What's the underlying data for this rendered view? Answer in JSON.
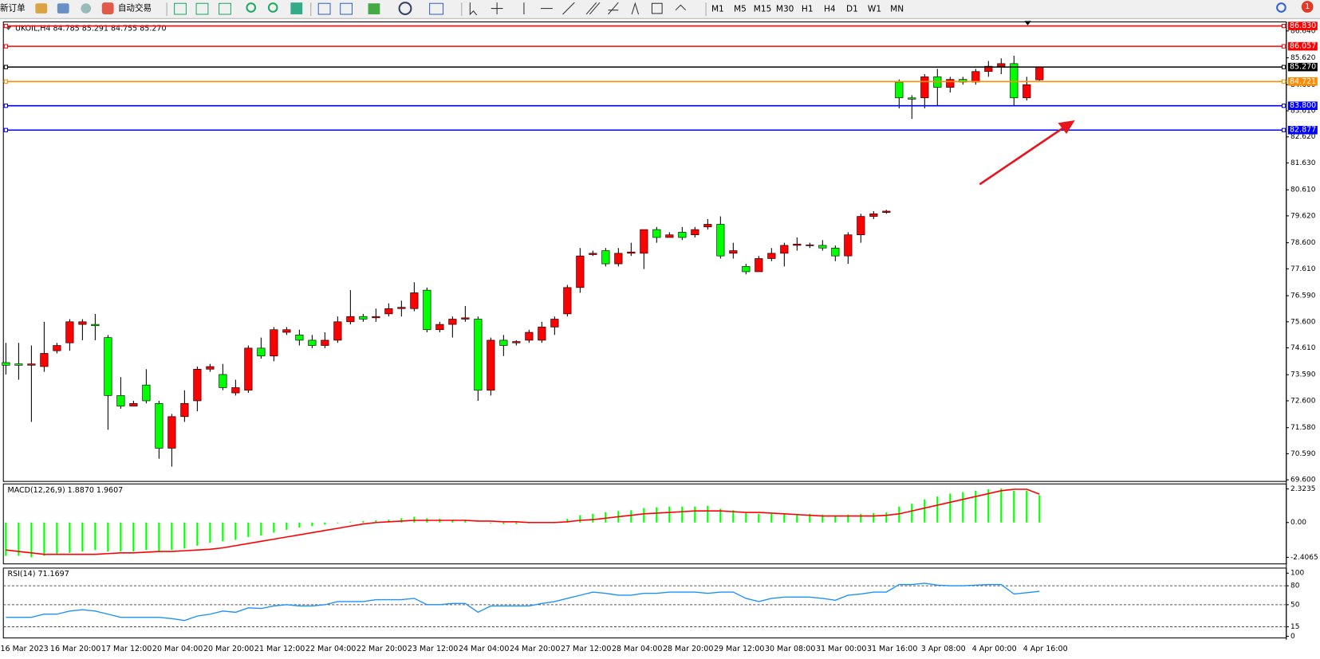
{
  "toolbar": {
    "new_order": "新订单",
    "auto_trading": "自动交易",
    "timeframes": [
      "M1",
      "M5",
      "M15",
      "M30",
      "H1",
      "H4",
      "D1",
      "W1",
      "MN"
    ],
    "notification_count": 1
  },
  "time_axis": [
    "16 Mar 2023",
    "16 Mar 20:00",
    "17 Mar 12:00",
    "20 Mar 04:00",
    "20 Mar 20:00",
    "21 Mar 12:00",
    "22 Mar 04:00",
    "22 Mar 20:00",
    "23 Mar 12:00",
    "24 Mar 04:00",
    "24 Mar 20:00",
    "27 Mar 12:00",
    "28 Mar 04:00",
    "28 Mar 20:00",
    "29 Mar 12:00",
    "30 Mar 08:00",
    "31 Mar 00:00",
    "31 Mar 16:00",
    "3 Apr 08:00",
    "4 Apr 00:00",
    "4 Apr 16:00"
  ],
  "chart_data": [
    {
      "type": "candlestick",
      "title": "UKOIL,H4  84.785 85.291 84.755 85.270",
      "up_color": "#ff0000",
      "down_color": "#00ff00",
      "open": [
        74.05,
        74.0,
        73.95,
        73.9,
        74.5,
        74.8,
        75.5,
        75.5,
        75.0,
        72.8,
        72.4,
        73.2,
        72.5,
        70.8,
        72.0,
        72.6,
        73.8,
        73.6,
        72.9,
        73.0,
        74.6,
        74.3,
        75.2,
        75.1,
        74.9,
        74.7,
        74.9,
        75.6,
        75.8,
        75.75,
        75.9,
        76.1,
        76.1,
        76.8,
        75.3,
        75.5,
        75.7,
        75.7,
        73.0,
        74.9,
        74.8,
        74.9,
        74.9,
        75.4,
        75.9,
        76.9,
        78.15,
        78.3,
        77.8,
        78.2,
        78.2,
        79.1,
        78.8,
        79.0,
        78.9,
        79.2,
        79.3,
        78.2,
        77.7,
        77.5,
        78.0,
        78.2,
        78.5,
        78.5,
        78.5,
        78.4,
        78.1,
        78.9,
        79.6,
        79.75,
        84.7,
        84.1,
        84.1,
        84.9,
        84.5,
        84.8,
        84.7,
        85.1,
        85.3,
        85.4,
        84.1,
        84.785
      ],
      "high": [
        74.8,
        74.8,
        74.7,
        75.6,
        74.8,
        75.7,
        75.7,
        75.9,
        75.1,
        73.5,
        72.6,
        73.8,
        72.6,
        72.1,
        73.0,
        73.9,
        74.0,
        74.0,
        73.4,
        74.7,
        75.0,
        75.4,
        75.4,
        75.3,
        75.1,
        75.2,
        75.8,
        76.8,
        75.9,
        76.1,
        76.3,
        76.4,
        77.1,
        76.9,
        75.6,
        75.8,
        76.2,
        75.8,
        75.0,
        75.1,
        74.9,
        75.3,
        75.6,
        75.8,
        77.0,
        78.4,
        78.3,
        78.4,
        78.4,
        78.6,
        79.1,
        79.2,
        79.0,
        79.2,
        79.2,
        79.5,
        79.6,
        78.6,
        77.8,
        78.1,
        78.4,
        78.6,
        78.8,
        78.6,
        78.7,
        78.5,
        79.0,
        79.7,
        79.8,
        79.85,
        84.8,
        84.2,
        85.0,
        85.2,
        84.9,
        84.9,
        85.2,
        85.5,
        85.6,
        85.7,
        84.9,
        85.291
      ],
      "low": [
        73.6,
        73.4,
        71.8,
        73.7,
        74.4,
        74.5,
        74.9,
        74.9,
        71.5,
        72.3,
        72.4,
        72.5,
        70.4,
        70.1,
        71.8,
        72.2,
        73.7,
        73.0,
        72.8,
        72.9,
        74.2,
        74.1,
        75.1,
        74.7,
        74.6,
        74.6,
        74.8,
        75.5,
        75.6,
        75.6,
        75.8,
        75.8,
        76.0,
        75.2,
        75.2,
        75.0,
        75.6,
        72.6,
        72.8,
        74.3,
        74.7,
        74.8,
        74.8,
        75.1,
        75.8,
        76.7,
        78.1,
        77.7,
        77.7,
        78.1,
        77.6,
        78.6,
        78.8,
        78.7,
        78.8,
        79.1,
        78.0,
        78.0,
        77.4,
        77.5,
        77.9,
        77.7,
        78.3,
        78.4,
        78.3,
        77.9,
        77.8,
        78.6,
        79.5,
        79.7,
        83.7,
        83.3,
        83.7,
        83.8,
        84.3,
        84.6,
        84.6,
        84.9,
        85.0,
        83.8,
        84.0,
        84.755
      ],
      "close": [
        73.95,
        73.95,
        74.0,
        74.4,
        74.7,
        75.6,
        75.6,
        75.45,
        72.8,
        72.4,
        72.5,
        72.6,
        70.8,
        72.0,
        72.5,
        73.8,
        73.9,
        73.1,
        73.1,
        74.6,
        74.3,
        75.3,
        75.3,
        74.9,
        74.7,
        74.9,
        75.6,
        75.8,
        75.7,
        75.8,
        76.1,
        76.15,
        76.7,
        75.3,
        75.5,
        75.7,
        75.75,
        73.0,
        74.9,
        74.7,
        74.85,
        75.2,
        75.4,
        75.7,
        76.9,
        78.1,
        78.2,
        77.8,
        78.2,
        78.25,
        79.1,
        78.8,
        78.9,
        78.8,
        79.1,
        79.3,
        78.1,
        78.3,
        77.5,
        78.0,
        78.2,
        78.5,
        78.55,
        78.52,
        78.4,
        78.1,
        78.9,
        79.6,
        79.7,
        79.8,
        84.1,
        84.05,
        84.9,
        84.5,
        84.8,
        84.7,
        85.1,
        85.3,
        85.4,
        84.1,
        84.6,
        85.27
      ],
      "levels": [
        {
          "value": 86.83,
          "label": "86.830",
          "color": "#ff0000"
        },
        {
          "value": 86.057,
          "label": "86.057",
          "color": "#ff0000"
        },
        {
          "value": 85.27,
          "label": "85.270",
          "color": "#000000"
        },
        {
          "value": 84.721,
          "label": "84.721",
          "color": "#ff8c00"
        },
        {
          "value": 83.8,
          "label": "83.800",
          "color": "#0000ff"
        },
        {
          "value": 82.877,
          "label": "82.877",
          "color": "#0000ff"
        }
      ],
      "ylim": [
        69.54,
        86.92
      ],
      "yticks": [
        {
          "value": 86.64,
          "label": "86.640"
        },
        {
          "value": 85.62,
          "label": "85.620"
        },
        {
          "value": 84.6,
          "label": "84.600"
        },
        {
          "value": 83.61,
          "label": "83.610"
        },
        {
          "value": 82.62,
          "label": "82.620"
        },
        {
          "value": 81.63,
          "label": "81.630"
        },
        {
          "value": 80.61,
          "label": "80.610"
        },
        {
          "value": 79.62,
          "label": "79.620"
        },
        {
          "value": 78.6,
          "label": "78.600"
        },
        {
          "value": 77.61,
          "label": "77.610"
        },
        {
          "value": 76.59,
          "label": "76.590"
        },
        {
          "value": 75.6,
          "label": "75.600"
        },
        {
          "value": 74.61,
          "label": "74.610"
        },
        {
          "value": 73.59,
          "label": "73.590"
        },
        {
          "value": 72.6,
          "label": "72.600"
        },
        {
          "value": 71.58,
          "label": "71.580"
        },
        {
          "value": 70.59,
          "label": "70.590"
        },
        {
          "value": 69.6,
          "label": "69.600"
        }
      ]
    },
    {
      "type": "macd",
      "title": "MACD(12,26,9) 1.8870 1.9607",
      "histogram": {
        "color": "#00ff00",
        "values": [
          -2.3,
          -2.3,
          -2.4,
          -2.3,
          -2.2,
          -2.1,
          -2.0,
          -1.9,
          -2.0,
          -2.0,
          -2.0,
          -1.9,
          -2.0,
          -1.9,
          -1.8,
          -1.6,
          -1.4,
          -1.3,
          -1.2,
          -1.0,
          -0.9,
          -0.7,
          -0.5,
          -0.35,
          -0.25,
          -0.15,
          -0.05,
          0.05,
          0.1,
          0.15,
          0.2,
          0.3,
          0.4,
          0.3,
          0.25,
          0.2,
          0.2,
          0.0,
          -0.05,
          -0.1,
          -0.1,
          -0.05,
          0.0,
          0.05,
          0.25,
          0.5,
          0.6,
          0.7,
          0.8,
          0.85,
          1.0,
          1.05,
          1.1,
          1.1,
          1.1,
          1.15,
          0.95,
          0.85,
          0.65,
          0.6,
          0.6,
          0.6,
          0.6,
          0.6,
          0.55,
          0.5,
          0.55,
          0.6,
          0.65,
          0.7,
          1.1,
          1.3,
          1.6,
          1.8,
          2.0,
          2.1,
          2.2,
          2.3,
          2.35,
          2.2,
          2.2,
          1.887
        ]
      },
      "signal": {
        "color": "#ff0000",
        "values": [
          -1.9,
          -2.0,
          -2.1,
          -2.2,
          -2.2,
          -2.2,
          -2.2,
          -2.2,
          -2.15,
          -2.1,
          -2.1,
          -2.05,
          -2.0,
          -2.0,
          -1.95,
          -1.9,
          -1.85,
          -1.75,
          -1.6,
          -1.45,
          -1.3,
          -1.15,
          -1.0,
          -0.85,
          -0.7,
          -0.55,
          -0.4,
          -0.25,
          -0.1,
          0.0,
          0.05,
          0.1,
          0.15,
          0.15,
          0.15,
          0.15,
          0.15,
          0.1,
          0.1,
          0.05,
          0.05,
          0.0,
          0.0,
          0.0,
          0.05,
          0.15,
          0.2,
          0.3,
          0.4,
          0.5,
          0.6,
          0.65,
          0.7,
          0.75,
          0.8,
          0.8,
          0.8,
          0.75,
          0.7,
          0.7,
          0.65,
          0.6,
          0.55,
          0.5,
          0.45,
          0.45,
          0.45,
          0.45,
          0.45,
          0.5,
          0.6,
          0.8,
          1.0,
          1.2,
          1.4,
          1.6,
          1.8,
          2.0,
          2.2,
          2.3,
          2.3,
          1.9607
        ]
      },
      "ylim": [
        -2.86,
        2.61
      ],
      "yticks": [
        2.3235,
        {
          "value": 0,
          "label": "0.00"
        },
        -2.4065
      ]
    },
    {
      "type": "line",
      "title": "RSI(14) 71.1697",
      "color": "#1e90ff",
      "values": [
        30,
        30,
        30,
        35,
        35,
        40,
        42,
        40,
        35,
        30,
        30,
        30,
        30,
        28,
        25,
        32,
        35,
        40,
        38,
        45,
        44,
        48,
        50,
        48,
        48,
        50,
        55,
        55,
        55,
        58,
        58,
        58,
        60,
        50,
        50,
        52,
        52,
        38,
        48,
        48,
        48,
        48,
        52,
        55,
        60,
        65,
        70,
        68,
        65,
        65,
        68,
        68,
        70,
        70,
        70,
        68,
        70,
        70,
        60,
        55,
        60,
        62,
        62,
        62,
        60,
        57,
        65,
        67,
        70,
        70,
        82,
        82,
        84,
        81,
        80,
        80,
        81,
        82,
        82,
        67,
        69,
        71.1697
      ],
      "ylim": [
        0,
        100
      ],
      "yticks": [
        100,
        80,
        50,
        15,
        0
      ]
    }
  ]
}
